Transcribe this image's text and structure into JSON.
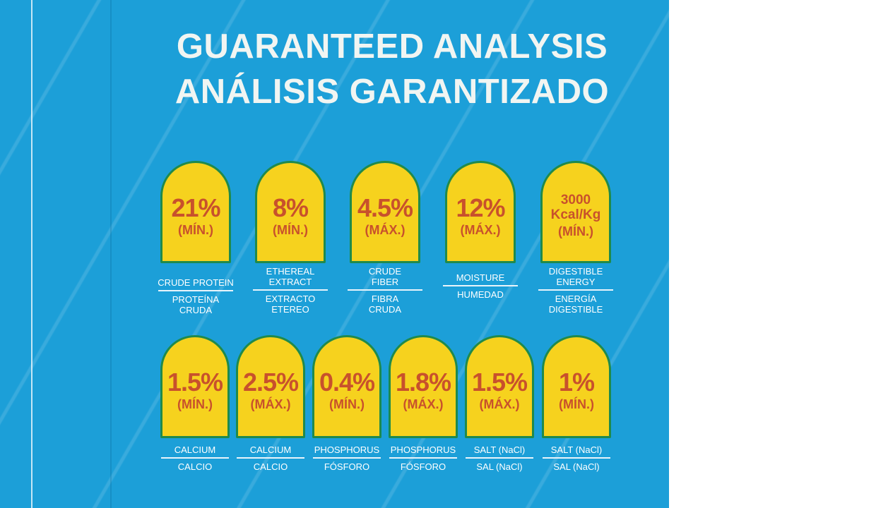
{
  "title": {
    "english": "GUARANTEED ANALYSIS",
    "spanish": "ANÁLISIS GARANTIZADO"
  },
  "row1": [
    {
      "value": "21%",
      "qualifier": "(MÍN.)",
      "label_en": "CRUDE PROTEIN",
      "label_es": "PROTEÍNA CRUDA"
    },
    {
      "value": "8%",
      "qualifier": "(MÍN.)",
      "label_en": "ETHEREAL EXTRACT",
      "label_es": "EXTRACTO ETEREO"
    },
    {
      "value": "4.5%",
      "qualifier": "(MÁX.)",
      "label_en": "CRUDE FIBER",
      "label_es": "FIBRA CRUDA"
    },
    {
      "value": "12%",
      "qualifier": "(MÁX.)",
      "label_en": "MOISTURE",
      "label_es": "HUMEDAD"
    },
    {
      "value": "3000 Kcal/Kg",
      "qualifier": "(MÍN.)",
      "label_en": "DIGESTIBLE ENERGY",
      "label_es": "ENERGÍA DIGESTIBLE"
    }
  ],
  "row2": [
    {
      "value": "1.5%",
      "qualifier": "(MÍN.)",
      "label_en": "CALCIUM",
      "label_es": "CALCIO"
    },
    {
      "value": "2.5%",
      "qualifier": "(MÁX.)",
      "label_en": "CALCIUM",
      "label_es": "CALCIO"
    },
    {
      "value": "0.4%",
      "qualifier": "(MÍN.)",
      "label_en": "PHOSPHORUS",
      "label_es": "FÓSFORO"
    },
    {
      "value": "1.8%",
      "qualifier": "(MÁX.)",
      "label_en": "PHOSPHORUS",
      "label_es": "FÓSFORO"
    },
    {
      "value": "1.5%",
      "qualifier": "(MÁX.)",
      "label_en": "SALT (NaCl)",
      "label_es": "SAL (NaCl)"
    },
    {
      "value": "1%",
      "qualifier": "(MÍN.)",
      "label_en": "SALT (NaCl)",
      "label_es": "SAL (NaCl)"
    }
  ],
  "colors": {
    "background": "#1c9fd8",
    "badge_fill": "#f6d21e",
    "badge_border": "#1f8a4c",
    "badge_text": "#c8512c",
    "label_text": "#ffffff"
  }
}
